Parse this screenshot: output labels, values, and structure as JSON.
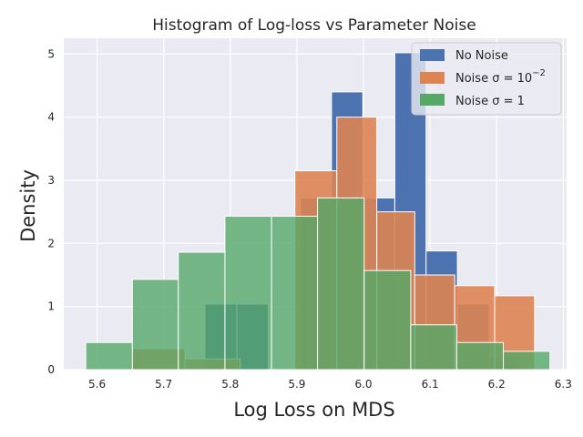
{
  "chart_data": {
    "type": "bar",
    "title": "Histogram of Log-loss vs Parameter Noise",
    "xlabel": "Log Loss on MDS",
    "ylabel": "Density",
    "xlim": [
      5.55,
      6.305
    ],
    "ylim": [
      0,
      5.25
    ],
    "xticks": [
      5.6,
      5.7,
      5.8,
      5.9,
      6.0,
      6.1,
      6.2,
      6.3
    ],
    "yticks": [
      0,
      1,
      2,
      3,
      4,
      5
    ],
    "grid": true,
    "legend_position": "upper right",
    "series": [
      {
        "name": "No Noise",
        "legend_main": "No Noise",
        "legend_sup": "",
        "color": "#4c72b0",
        "opacity": 1.0,
        "bins": [
          {
            "x0": 5.762,
            "x1": 5.81,
            "v": 1.04
          },
          {
            "x0": 5.81,
            "x1": 5.857,
            "v": 1.04
          },
          {
            "x0": 5.857,
            "x1": 5.905,
            "v": 0.0
          },
          {
            "x0": 5.905,
            "x1": 5.952,
            "v": 2.72
          },
          {
            "x0": 5.952,
            "x1": 5.999,
            "v": 4.4
          },
          {
            "x0": 5.999,
            "x1": 6.047,
            "v": 2.72
          },
          {
            "x0": 6.047,
            "x1": 6.094,
            "v": 5.02
          },
          {
            "x0": 6.094,
            "x1": 6.141,
            "v": 1.88
          },
          {
            "x0": 6.141,
            "x1": 6.189,
            "v": 1.04
          },
          {
            "x0": 6.189,
            "x1": 6.236,
            "v": 0.2
          }
        ]
      },
      {
        "name": "Noise σ = 10^-2",
        "legend_main": "Noise σ = 10",
        "legend_sup": "−2",
        "color": "#dd8452",
        "opacity": 0.9,
        "bins": [
          {
            "x0": 5.65,
            "x1": 5.732,
            "v": 0.33
          },
          {
            "x0": 5.732,
            "x1": 5.815,
            "v": 0.17
          },
          {
            "x0": 5.815,
            "x1": 5.897,
            "v": 0.0
          },
          {
            "x0": 5.897,
            "x1": 5.96,
            "v": 3.15
          },
          {
            "x0": 5.96,
            "x1": 6.02,
            "v": 4.0
          },
          {
            "x0": 6.02,
            "x1": 6.077,
            "v": 2.5
          },
          {
            "x0": 6.077,
            "x1": 6.137,
            "v": 1.5
          },
          {
            "x0": 6.137,
            "x1": 6.197,
            "v": 1.33
          },
          {
            "x0": 6.197,
            "x1": 6.257,
            "v": 1.17
          }
        ]
      },
      {
        "name": "Noise σ = 1",
        "legend_main": "Noise σ = 1",
        "legend_sup": "",
        "color": "#55a868",
        "opacity": 0.8,
        "bins": [
          {
            "x0": 5.583,
            "x1": 5.653,
            "v": 0.43
          },
          {
            "x0": 5.653,
            "x1": 5.722,
            "v": 1.43
          },
          {
            "x0": 5.722,
            "x1": 5.792,
            "v": 1.86
          },
          {
            "x0": 5.792,
            "x1": 5.862,
            "v": 2.43
          },
          {
            "x0": 5.862,
            "x1": 5.931,
            "v": 2.43
          },
          {
            "x0": 5.931,
            "x1": 6.001,
            "v": 2.72
          },
          {
            "x0": 6.001,
            "x1": 6.071,
            "v": 1.57
          },
          {
            "x0": 6.071,
            "x1": 6.14,
            "v": 0.71
          },
          {
            "x0": 6.14,
            "x1": 6.21,
            "v": 0.43
          },
          {
            "x0": 6.21,
            "x1": 6.28,
            "v": 0.29
          }
        ]
      }
    ],
    "colors": {
      "plot_background": "#eaeaf2",
      "grid": "#ffffff",
      "text": "#262626"
    }
  }
}
